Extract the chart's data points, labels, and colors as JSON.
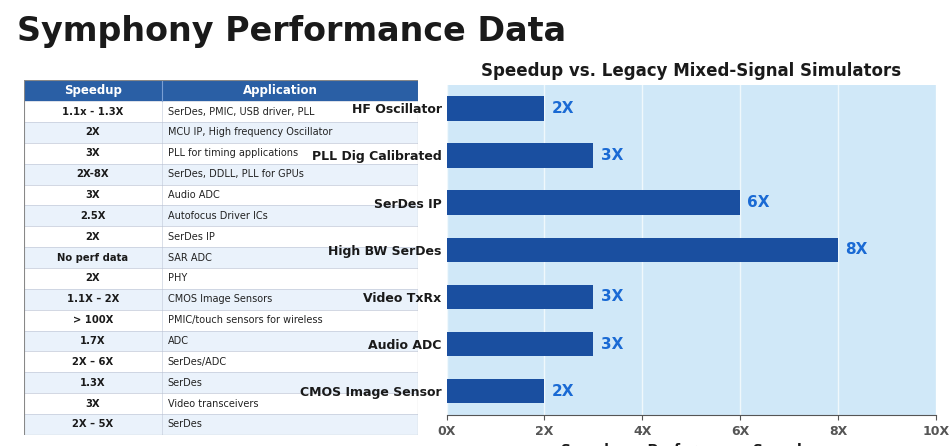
{
  "title": "Symphony Performance Data",
  "title_fontsize": 24,
  "title_color": "#1a1a1a",
  "background_color": "#c8dff0",
  "header_bg": "#2a5fa5",
  "header_text_color": "#ffffff",
  "table_headers": [
    "Speedup",
    "Application"
  ],
  "table_rows": [
    [
      "1.1x - 1.3X",
      "SerDes, PMIC, USB driver, PLL"
    ],
    [
      "2X",
      "MCU IP, High frequency Oscillator"
    ],
    [
      "3X",
      "PLL for timing applications"
    ],
    [
      "2X-8X",
      "SerDes, DDLL, PLL for GPUs"
    ],
    [
      "3X",
      "Audio ADC"
    ],
    [
      "2.5X",
      "Autofocus Driver ICs"
    ],
    [
      "2X",
      "SerDes IP"
    ],
    [
      "No perf data",
      "SAR ADC"
    ],
    [
      "2X",
      "PHY"
    ],
    [
      "1.1X – 2X",
      "CMOS Image Sensors"
    ],
    [
      "> 100X",
      "PMIC/touch sensors for wireless"
    ],
    [
      "1.7X",
      "ADC"
    ],
    [
      "2X – 6X",
      "SerDes/ADC"
    ],
    [
      "1.3X",
      "SerDes"
    ],
    [
      "3X",
      "Video transceivers"
    ],
    [
      "2X – 5X",
      "SerDes"
    ]
  ],
  "chart_title": "Speedup vs. Legacy Mixed-Signal Simulators",
  "chart_title_fontsize": 12,
  "bar_labels": [
    "HF Oscillator",
    "PLL Dig Calibrated",
    "SerDes IP",
    "High BW SerDes",
    "Video TxRx",
    "Audio ADC",
    "CMOS Image Sensor"
  ],
  "bar_values": [
    2,
    3,
    6,
    8,
    3,
    3,
    2
  ],
  "bar_color": "#1a4fa0",
  "bar_value_color": "#1a6ad4",
  "xlabel": "Symphony Performance Speedup",
  "xlim": [
    0,
    10
  ],
  "xticks": [
    0,
    2,
    4,
    6,
    8,
    10
  ],
  "xtick_labels": [
    "0X",
    "2X",
    "4X",
    "6X",
    "8X",
    "10X"
  ],
  "title_bar_color": "#2a5fa5",
  "white_bg": "#ffffff",
  "light_blue_bg": "#d0e8f8"
}
